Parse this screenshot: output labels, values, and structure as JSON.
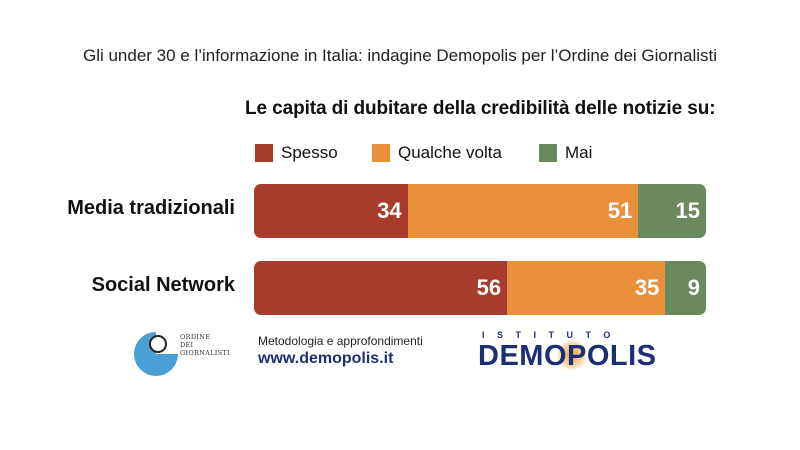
{
  "headline": "Gli under 30 e l’informazione in Italia: indagine Demopolis per l’Ordine dei Giornalisti",
  "colors": {
    "spesso": "#a83c2c",
    "qualche_volta": "#e8913a",
    "mai": "#6a8a5e"
  },
  "chart_data": {
    "type": "bar",
    "orientation": "horizontal",
    "stacked": true,
    "title": "Le capita di dubitare della credibilità delle notizie su:",
    "categories": [
      "Media tradizionali",
      "Social Network"
    ],
    "series": [
      {
        "name": "Spesso",
        "values": [
          34,
          56
        ]
      },
      {
        "name": "Qualche volta",
        "values": [
          51,
          35
        ]
      },
      {
        "name": "Mai",
        "values": [
          15,
          9
        ]
      }
    ],
    "xlim": [
      0,
      100
    ],
    "legend_position": "top",
    "grid": false
  },
  "footer": {
    "ordine_logo_lines": [
      "ORDINE",
      "DEI",
      "GIORNALISTI"
    ],
    "method_label": "Metodologia e approfondimenti",
    "site": "www.demopolis.it",
    "brand_top": "ISTITUTO",
    "brand_name": "DEMOPOLIS"
  }
}
